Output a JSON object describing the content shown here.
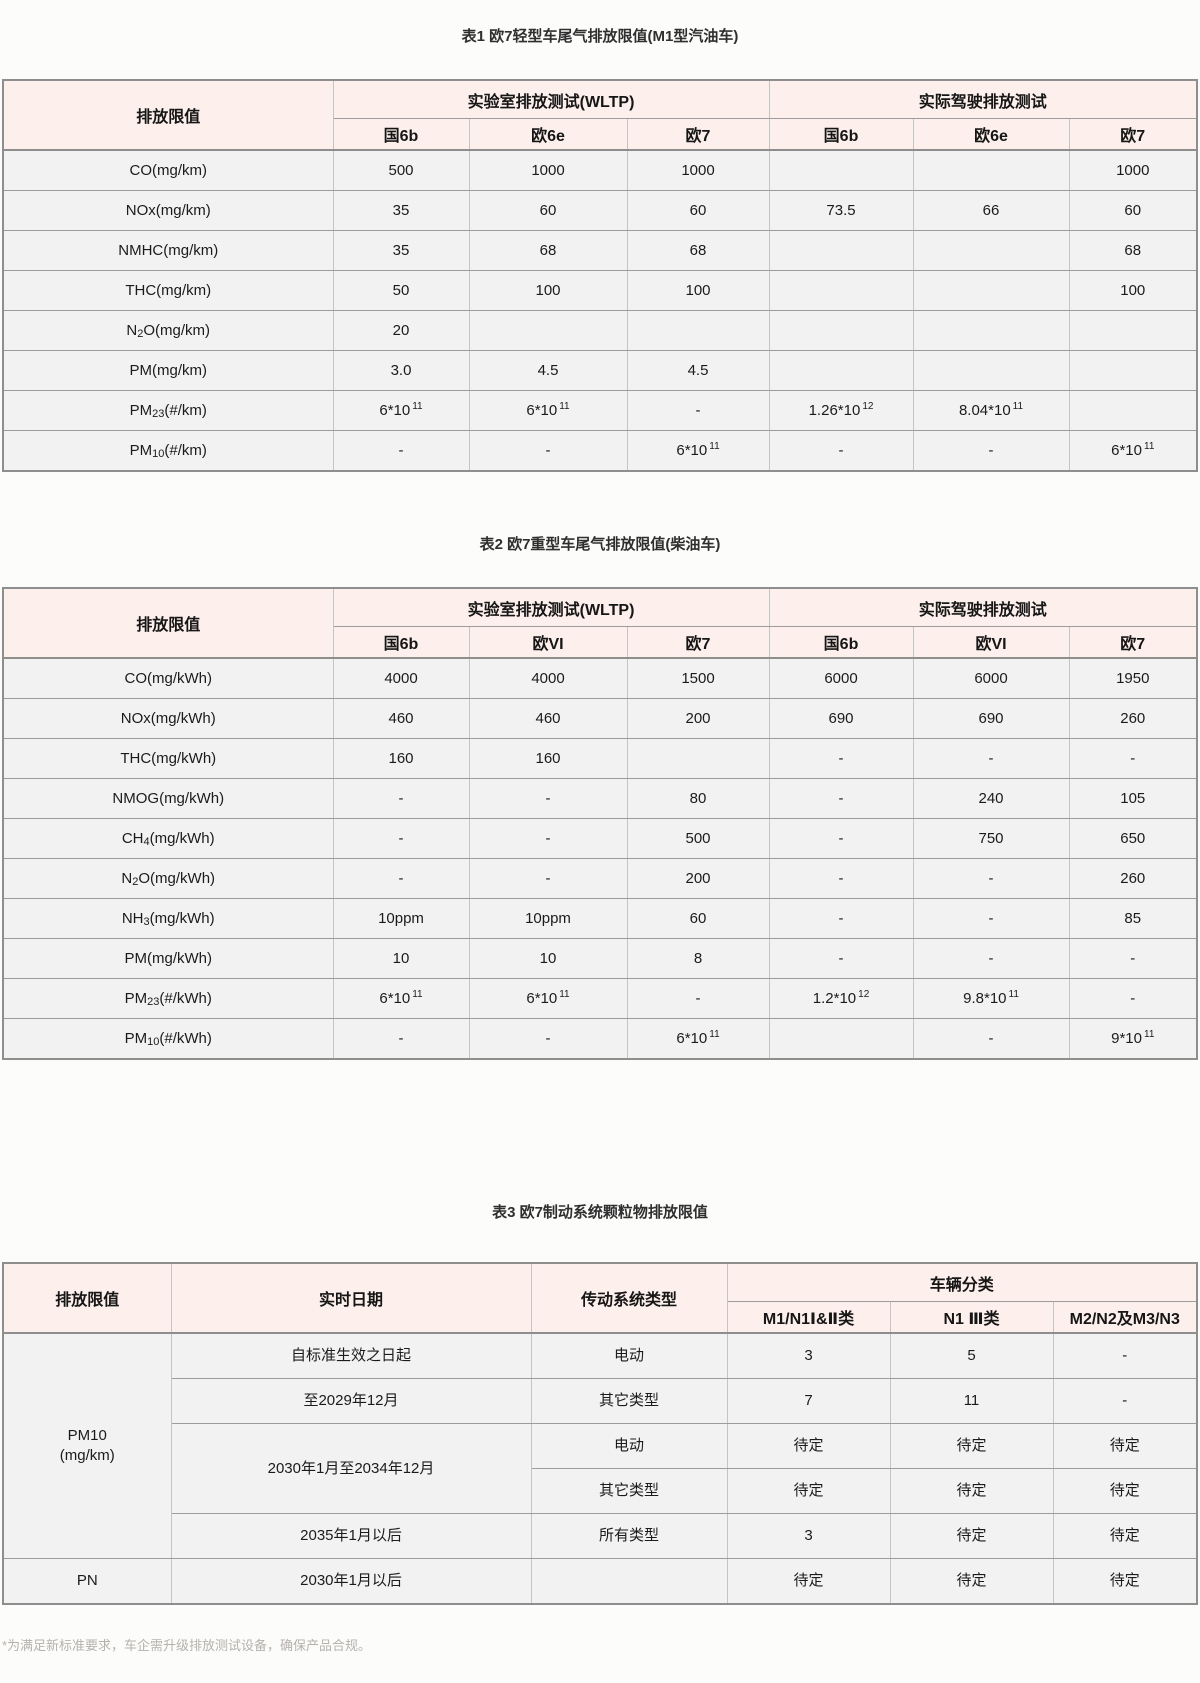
{
  "colors": {
    "header_bg": "#fdf0ec",
    "row_bg": "#f2f2f2",
    "page_bg": "#fcfcfb",
    "border": "#9c9c9c"
  },
  "tables": [
    {
      "title": "表1 欧7轻型车尾气排放限值(M1型汽油车)",
      "corner": "排放限值",
      "groups": [
        "实验室排放测试(WLTP)",
        "实际驾驶排放测试"
      ],
      "cols": [
        "国6b",
        "欧6e",
        "欧7",
        "国6b",
        "欧6e",
        "欧7"
      ],
      "rows": [
        {
          "label": "CO(mg/km)",
          "values": [
            "500",
            "1000",
            "1000",
            "",
            "",
            "1000"
          ]
        },
        {
          "label": "NOx(mg/km)",
          "values": [
            "35",
            "60",
            "60",
            "73.5",
            "66",
            "60"
          ]
        },
        {
          "label": "NMHC(mg/km)",
          "values": [
            "35",
            "68",
            "68",
            "",
            "",
            "68"
          ]
        },
        {
          "label": "THC(mg/km)",
          "values": [
            "50",
            "100",
            "100",
            "",
            "",
            "100"
          ]
        },
        {
          "label": "N_{2}O(mg/km)",
          "values": [
            "20",
            "",
            "",
            "",
            "",
            ""
          ]
        },
        {
          "label": "PM(mg/km)",
          "values": [
            "3.0",
            "4.5",
            "4.5",
            "",
            "",
            ""
          ]
        },
        {
          "label": "PM_{23}(#/km)",
          "values": [
            "6*10^{11}",
            "6*10^{11}",
            "-",
            "1.26*10^{12}",
            "8.04*10^{11}",
            ""
          ]
        },
        {
          "label": "PM_{10}(#/km)",
          "values": [
            "-",
            "-",
            "6*10^{11}",
            "-",
            "-",
            "6*10^{11}"
          ]
        }
      ]
    },
    {
      "title": "表2 欧7重型车尾气排放限值(柴油车)",
      "corner": "排放限值",
      "groups": [
        "实验室排放测试(WLTP)",
        "实际驾驶排放测试"
      ],
      "cols": [
        "国6b",
        "欧VI",
        "欧7",
        "国6b",
        "欧VI",
        "欧7"
      ],
      "rows": [
        {
          "label": "CO(mg/kWh)",
          "values": [
            "4000",
            "4000",
            "1500",
            "6000",
            "6000",
            "1950"
          ]
        },
        {
          "label": "NOx(mg/kWh)",
          "values": [
            "460",
            "460",
            "200",
            "690",
            "690",
            "260"
          ]
        },
        {
          "label": "THC(mg/kWh)",
          "values": [
            "160",
            "160",
            "",
            "-",
            "-",
            "-"
          ]
        },
        {
          "label": "NMOG(mg/kWh)",
          "values": [
            "-",
            "-",
            "80",
            "-",
            "240",
            "105"
          ]
        },
        {
          "label": "CH_{4}(mg/kWh)",
          "values": [
            "-",
            "-",
            "500",
            "-",
            "750",
            "650"
          ]
        },
        {
          "label": "N_{2}O(mg/kWh)",
          "values": [
            "-",
            "-",
            "200",
            "-",
            "-",
            "260"
          ]
        },
        {
          "label": "NH_{3}(mg/kWh)",
          "values": [
            "10ppm",
            "10ppm",
            "60",
            "-",
            "-",
            "85"
          ]
        },
        {
          "label": "PM(mg/kWh)",
          "values": [
            "10",
            "10",
            "8",
            "-",
            "-",
            "-"
          ]
        },
        {
          "label": "PM_{23}(#/kWh)",
          "values": [
            "6*10^{11}",
            "6*10^{11}",
            "-",
            "1.2*10^{12}",
            "9.8*10^{11}",
            "-"
          ]
        },
        {
          "label": "PM_{10}(#/kWh)",
          "values": [
            "-",
            "-",
            "6*10^{11}",
            "",
            "-",
            "9*10^{11}"
          ]
        }
      ]
    }
  ],
  "brake_table": {
    "title": "表3 欧7制动系统颗粒物排放限值",
    "headers": {
      "corner": "排放限值",
      "date": "实时日期",
      "drivetrain": "传动系统类型",
      "group": "车辆分类",
      "categories": [
        "M1/N1Ⅰ&Ⅱ类",
        "N1 Ⅲ类",
        "M2/N2及M3/N3"
      ]
    },
    "rows": [
      [
        {
          "t": "PM10\n(mg/km)",
          "rs": 5
        },
        {
          "t": "自标准生效之日起"
        },
        {
          "t": "电动"
        },
        {
          "t": "3"
        },
        {
          "t": "5"
        },
        {
          "t": "-"
        }
      ],
      [
        {
          "t": "至2029年12月"
        },
        {
          "t": "其它类型"
        },
        {
          "t": "7"
        },
        {
          "t": "11"
        },
        {
          "t": "-"
        }
      ],
      [
        {
          "t": "2030年1月至2034年12月",
          "rs": 2
        },
        {
          "t": "电动"
        },
        {
          "t": "待定"
        },
        {
          "t": "待定"
        },
        {
          "t": "待定"
        }
      ],
      [
        {
          "t": "其它类型"
        },
        {
          "t": "待定"
        },
        {
          "t": "待定"
        },
        {
          "t": "待定"
        }
      ],
      [
        {
          "t": "2035年1月以后"
        },
        {
          "t": "所有类型"
        },
        {
          "t": "3"
        },
        {
          "t": "待定"
        },
        {
          "t": "待定"
        }
      ],
      [
        {
          "t": "PN"
        },
        {
          "t": "2030年1月以后"
        },
        {
          "t": ""
        },
        {
          "t": "待定"
        },
        {
          "t": "待定"
        },
        {
          "t": "待定"
        }
      ]
    ]
  },
  "footnote": "*为满足新标准要求，车企需升级排放测试设备，确保产品合规。"
}
